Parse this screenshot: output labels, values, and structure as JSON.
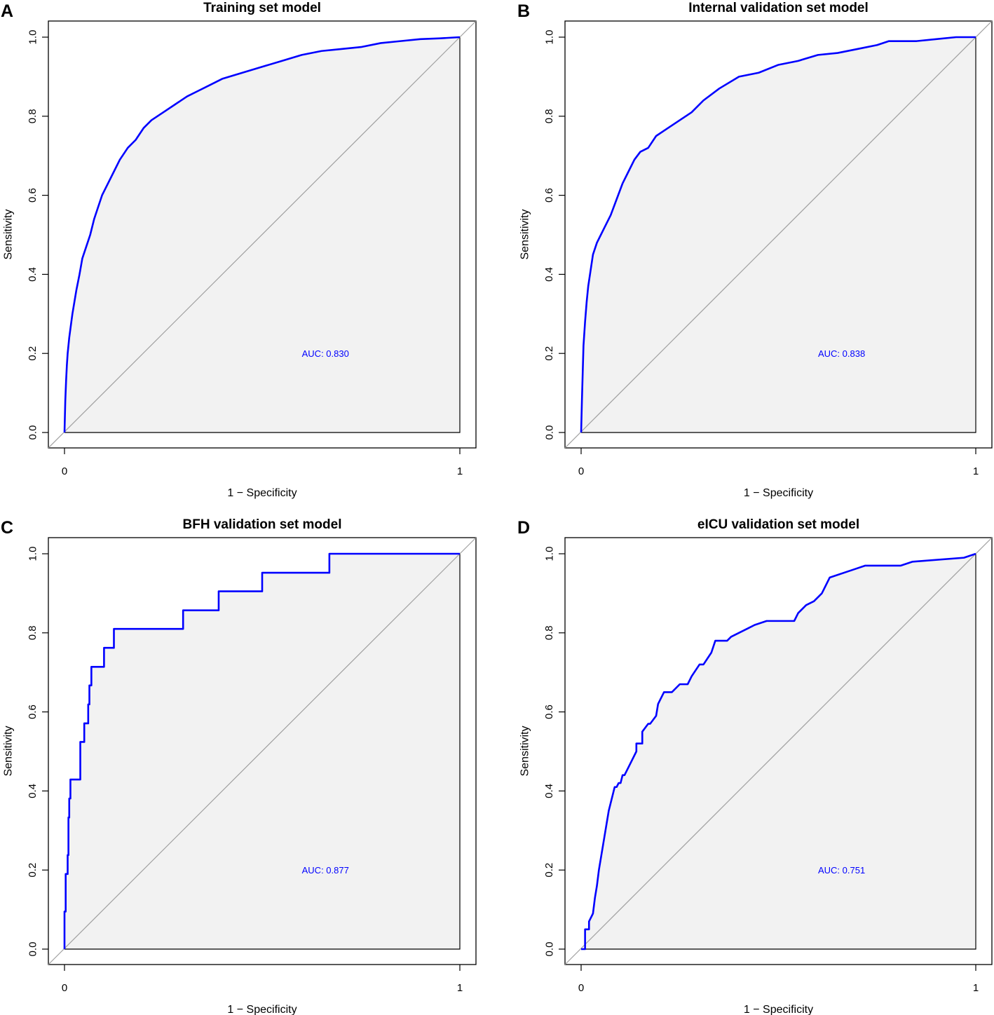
{
  "chart_data": [
    {
      "type": "line",
      "panel_label": "A",
      "title": "Training set model",
      "xlabel": "1 − Specificity",
      "ylabel": "Sensitivity",
      "xlim": [
        0,
        1
      ],
      "ylim": [
        0,
        1
      ],
      "x_ticks": [
        0,
        1
      ],
      "y_ticks": [
        "0.0",
        "0.2",
        "0.4",
        "0.6",
        "0.8",
        "1.0"
      ],
      "auc_label": "AUC: 0.830",
      "series": [
        {
          "name": "ROC",
          "color": "#0000ff",
          "x": [
            0,
            0.002,
            0.004,
            0.006,
            0.008,
            0.012,
            0.016,
            0.02,
            0.025,
            0.03,
            0.038,
            0.045,
            0.055,
            0.065,
            0.075,
            0.085,
            0.095,
            0.11,
            0.125,
            0.14,
            0.16,
            0.18,
            0.2,
            0.22,
            0.25,
            0.28,
            0.31,
            0.34,
            0.37,
            0.4,
            0.45,
            0.5,
            0.55,
            0.6,
            0.65,
            0.7,
            0.75,
            0.8,
            0.85,
            0.9,
            0.95,
            1
          ],
          "y": [
            0,
            0.08,
            0.13,
            0.17,
            0.2,
            0.24,
            0.27,
            0.3,
            0.33,
            0.36,
            0.4,
            0.44,
            0.47,
            0.5,
            0.54,
            0.57,
            0.6,
            0.63,
            0.66,
            0.69,
            0.72,
            0.74,
            0.77,
            0.79,
            0.81,
            0.83,
            0.85,
            0.865,
            0.88,
            0.895,
            0.91,
            0.925,
            0.94,
            0.955,
            0.965,
            0.97,
            0.975,
            0.985,
            0.99,
            0.995,
            0.997,
            1
          ]
        }
      ]
    },
    {
      "type": "line",
      "panel_label": "B",
      "title": "Internal validation set model",
      "xlabel": "1 − Specificity",
      "ylabel": "Sensitivity",
      "xlim": [
        0,
        1
      ],
      "ylim": [
        0,
        1
      ],
      "x_ticks": [
        0,
        1
      ],
      "y_ticks": [
        "0.0",
        "0.2",
        "0.4",
        "0.6",
        "0.8",
        "1.0"
      ],
      "auc_label": "AUC: 0.838",
      "series": [
        {
          "name": "ROC",
          "color": "#0000ff",
          "x": [
            0,
            0.002,
            0.004,
            0.006,
            0.01,
            0.014,
            0.018,
            0.024,
            0.03,
            0.04,
            0.05,
            0.06,
            0.075,
            0.09,
            0.105,
            0.12,
            0.135,
            0.15,
            0.17,
            0.19,
            0.22,
            0.25,
            0.28,
            0.31,
            0.35,
            0.4,
            0.45,
            0.5,
            0.55,
            0.6,
            0.65,
            0.7,
            0.75,
            0.78,
            0.8,
            0.85,
            0.9,
            0.95,
            1
          ],
          "y": [
            0,
            0.08,
            0.15,
            0.22,
            0.28,
            0.33,
            0.37,
            0.41,
            0.45,
            0.48,
            0.5,
            0.52,
            0.55,
            0.59,
            0.63,
            0.66,
            0.69,
            0.71,
            0.72,
            0.75,
            0.77,
            0.79,
            0.81,
            0.84,
            0.87,
            0.9,
            0.91,
            0.93,
            0.94,
            0.955,
            0.96,
            0.97,
            0.98,
            0.99,
            0.99,
            0.99,
            0.995,
            1,
            1
          ]
        }
      ]
    },
    {
      "type": "line",
      "panel_label": "C",
      "title": "BFH validation set model",
      "xlabel": "1 − Specificity",
      "ylabel": "Sensitivity",
      "xlim": [
        0,
        1
      ],
      "ylim": [
        0,
        1
      ],
      "x_ticks": [
        0,
        1
      ],
      "y_ticks": [
        "0.0",
        "0.2",
        "0.4",
        "0.6",
        "0.8",
        "1.0"
      ],
      "auc_label": "AUC: 0.877",
      "series": [
        {
          "name": "ROC",
          "color": "#0000ff",
          "x": [
            0,
            0,
            0.003,
            0.003,
            0.008,
            0.008,
            0.01,
            0.01,
            0.012,
            0.012,
            0.015,
            0.015,
            0.04,
            0.04,
            0.05,
            0.05,
            0.06,
            0.06,
            0.063,
            0.063,
            0.068,
            0.068,
            0.1,
            0.1,
            0.125,
            0.125,
            0.3,
            0.3,
            0.39,
            0.39,
            0.5,
            0.5,
            0.67,
            0.67,
            1
          ],
          "y": [
            0,
            0.095,
            0.095,
            0.19,
            0.19,
            0.238,
            0.238,
            0.333,
            0.333,
            0.381,
            0.381,
            0.429,
            0.429,
            0.524,
            0.524,
            0.571,
            0.571,
            0.619,
            0.619,
            0.667,
            0.667,
            0.714,
            0.714,
            0.762,
            0.762,
            0.81,
            0.81,
            0.857,
            0.857,
            0.905,
            0.905,
            0.952,
            0.952,
            1,
            1
          ]
        }
      ]
    },
    {
      "type": "line",
      "panel_label": "D",
      "title": "eICU validation set model",
      "xlabel": "1 − Specificity",
      "ylabel": "Sensitivity",
      "xlim": [
        0,
        1
      ],
      "ylim": [
        0,
        1
      ],
      "x_ticks": [
        0,
        1
      ],
      "y_ticks": [
        "0.0",
        "0.2",
        "0.4",
        "0.6",
        "0.8",
        "1.0"
      ],
      "auc_label": "AUC: 0.751",
      "series": [
        {
          "name": "ROC",
          "color": "#0000ff",
          "x": [
            0,
            0.01,
            0.01,
            0.02,
            0.02,
            0.03,
            0.035,
            0.04,
            0.045,
            0.05,
            0.055,
            0.06,
            0.065,
            0.07,
            0.075,
            0.08,
            0.085,
            0.09,
            0.095,
            0.1,
            0.105,
            0.11,
            0.13,
            0.14,
            0.14,
            0.155,
            0.155,
            0.17,
            0.175,
            0.19,
            0.195,
            0.21,
            0.22,
            0.23,
            0.25,
            0.27,
            0.28,
            0.3,
            0.31,
            0.33,
            0.34,
            0.37,
            0.38,
            0.42,
            0.44,
            0.47,
            0.54,
            0.55,
            0.57,
            0.59,
            0.61,
            0.62,
            0.63,
            0.69,
            0.72,
            0.81,
            0.84,
            0.97,
            1
          ],
          "y": [
            0,
            0,
            0.05,
            0.05,
            0.07,
            0.09,
            0.13,
            0.16,
            0.2,
            0.23,
            0.26,
            0.29,
            0.32,
            0.35,
            0.37,
            0.39,
            0.41,
            0.41,
            0.42,
            0.42,
            0.44,
            0.44,
            0.48,
            0.5,
            0.52,
            0.52,
            0.55,
            0.57,
            0.57,
            0.59,
            0.62,
            0.65,
            0.65,
            0.65,
            0.67,
            0.67,
            0.69,
            0.72,
            0.72,
            0.75,
            0.78,
            0.78,
            0.79,
            0.81,
            0.82,
            0.83,
            0.83,
            0.85,
            0.87,
            0.88,
            0.9,
            0.92,
            0.94,
            0.96,
            0.97,
            0.97,
            0.98,
            0.99,
            1
          ]
        }
      ]
    }
  ]
}
